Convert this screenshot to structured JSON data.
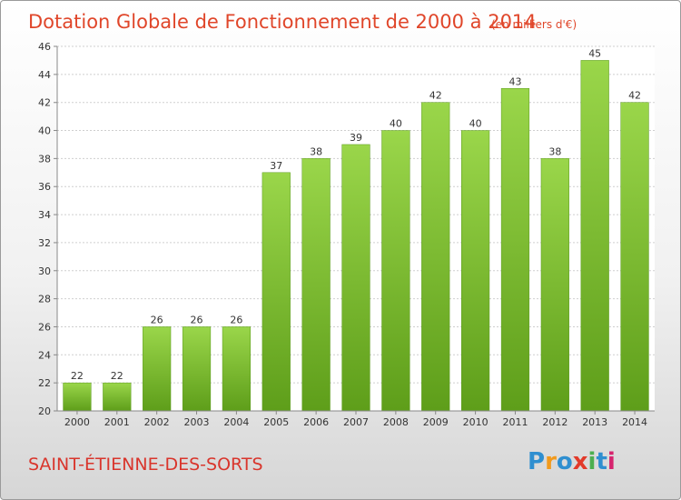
{
  "chart_data": {
    "type": "bar",
    "title": "Dotation Globale de Fonctionnement de 2000 à 2014",
    "subtitle": "(en milliers d'€)",
    "categories": [
      "2000",
      "2001",
      "2002",
      "2003",
      "2004",
      "2005",
      "2006",
      "2007",
      "2008",
      "2009",
      "2010",
      "2011",
      "2012",
      "2013",
      "2014"
    ],
    "values": [
      22,
      22,
      26,
      26,
      26,
      37,
      38,
      39,
      40,
      42,
      40,
      43,
      38,
      45,
      42
    ],
    "ylim": [
      20,
      46
    ],
    "yticks": [
      20,
      22,
      24,
      26,
      28,
      30,
      32,
      34,
      36,
      38,
      40,
      42,
      44,
      46
    ],
    "grid": true,
    "bar_color": "#7cc12e",
    "bar_color_dark": "#5a9a1c"
  },
  "commune": "SAINT-ÉTIENNE-DES-SORTS",
  "logo": {
    "text": "Proxiti",
    "colors": [
      "#2f8fd0",
      "#f29a1c",
      "#2f8fd0",
      "#e23a2a",
      "#4caf50",
      "#2f8fd0",
      "#d6246e"
    ]
  }
}
